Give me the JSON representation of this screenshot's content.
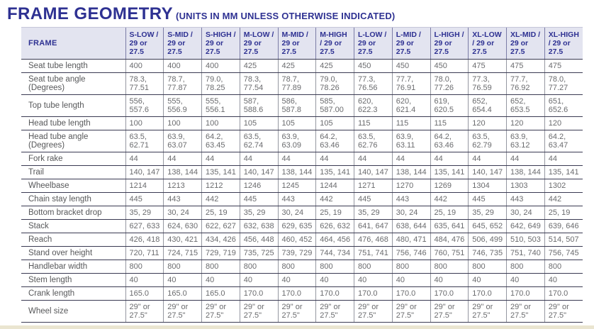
{
  "title": "FRAME GEOMETRY",
  "subtitle": "(UNITS IN MM UNLESS OTHERWISE INDICATED)",
  "colors": {
    "brand_navy": "#2e3192",
    "header_background": "#e3e4f0",
    "label_text": "#57585a",
    "cell_text": "#6a6b6e",
    "row_border": "#3a3a52",
    "column_border": "#9597a1"
  },
  "table": {
    "frame_header": "FRAME",
    "columns": [
      "S-LOW / 29 or 27.5",
      "S-MID / 29 or 27.5",
      "S-HIGH / 29 or 27.5",
      "M-LOW / 29 or 27.5",
      "M-MID / 29 or 27.5",
      "M-HIGH / 29 or 27.5",
      "L-LOW / 29 or 27.5",
      "L-MID / 29 or 27.5",
      "L-HIGH / 29 or 27.5",
      "XL-LOW / 29 or 27.5",
      "XL-MID / 29 or 27.5",
      "XL-HIGH / 29 or 27.5"
    ],
    "rows": [
      {
        "label": "Seat tube length",
        "values": [
          "400",
          "400",
          "400",
          "425",
          "425",
          "425",
          "450",
          "450",
          "450",
          "475",
          "475",
          "475"
        ]
      },
      {
        "label": "Seat tube angle (Degrees)",
        "values": [
          "78.3, 77.51",
          "78.7, 77.87",
          "79.0, 78.25",
          "78.3, 77.54",
          "78.7, 77.89",
          "79.0, 78.26",
          "77.3, 76.56",
          "77.7, 76.91",
          "78.0, 77.26",
          "77.3, 76.59",
          "77.7, 76.92",
          "78.0, 77.27"
        ]
      },
      {
        "label": "Top tube length",
        "values": [
          "556, 557.6",
          "555, 556.9",
          "555, 556.1",
          "587, 588.6",
          "586, 587.8",
          "585, 587.00",
          "620, 622.3",
          "620, 621.4",
          "619, 620.5",
          "652, 654.4",
          "652, 653.5",
          "651, 652.6"
        ]
      },
      {
        "label": "Head tube length",
        "values": [
          "100",
          "100",
          "100",
          "105",
          "105",
          "105",
          "115",
          "115",
          "115",
          "120",
          "120",
          "120"
        ]
      },
      {
        "label": "Head tube angle (Degrees)",
        "values": [
          "63.5, 62.71",
          "63.9, 63.07",
          "64.2, 63.45",
          "63.5, 62.74",
          "63.9, 63.09",
          "64.2, 63.46",
          "63.5, 62.76",
          "63.9, 63.11",
          "64.2, 63.46",
          "63.5, 62.79",
          "63.9, 63.12",
          "64.2, 63.47"
        ]
      },
      {
        "label": "Fork rake",
        "values": [
          "44",
          "44",
          "44",
          "44",
          "44",
          "44",
          "44",
          "44",
          "44",
          "44",
          "44",
          "44"
        ]
      },
      {
        "label": "Trail",
        "values": [
          "140, 147",
          "138, 144",
          "135, 141",
          "140, 147",
          "138, 144",
          "135, 141",
          "140, 147",
          "138, 144",
          "135, 141",
          "140, 147",
          "138, 144",
          "135, 141"
        ]
      },
      {
        "label": "Wheelbase",
        "values": [
          "1214",
          "1213",
          "1212",
          "1246",
          "1245",
          "1244",
          "1271",
          "1270",
          "1269",
          "1304",
          "1303",
          "1302"
        ]
      },
      {
        "label": "Chain stay length",
        "values": [
          "445",
          "443",
          "442",
          "445",
          "443",
          "442",
          "445",
          "443",
          "442",
          "445",
          "443",
          "442"
        ]
      },
      {
        "label": "Bottom bracket drop",
        "values": [
          "35, 29",
          "30, 24",
          "25, 19",
          "35, 29",
          "30, 24",
          "25, 19",
          "35, 29",
          "30, 24",
          "25, 19",
          "35, 29",
          "30, 24",
          "25, 19"
        ]
      },
      {
        "label": "Stack",
        "values": [
          "627, 633",
          "624, 630",
          "622, 627",
          "632, 638",
          "629, 635",
          "626, 632",
          "641, 647",
          "638, 644",
          "635, 641",
          "645, 652",
          "642, 649",
          "639, 646"
        ]
      },
      {
        "label": "Reach",
        "values": [
          "426, 418",
          "430, 421",
          "434, 426",
          "456, 448",
          "460, 452",
          "464, 456",
          "476, 468",
          "480, 471",
          "484, 476",
          "506, 499",
          "510, 503",
          "514, 507"
        ]
      },
      {
        "label": "Stand over height",
        "values": [
          "720, 711",
          "724, 715",
          "729, 719",
          "735, 725",
          "739, 729",
          "744, 734",
          "751, 741",
          "756, 746",
          "760, 751",
          "746, 735",
          "751, 740",
          "756, 745"
        ]
      },
      {
        "label": "Handlebar width",
        "values": [
          "800",
          "800",
          "800",
          "800",
          "800",
          "800",
          "800",
          "800",
          "800",
          "800",
          "800",
          "800"
        ]
      },
      {
        "label": "Stem length",
        "values": [
          "40",
          "40",
          "40",
          "40",
          "40",
          "40",
          "40",
          "40",
          "40",
          "40",
          "40",
          "40"
        ]
      },
      {
        "label": "Crank length",
        "values": [
          "165.0",
          "165.0",
          "165.0",
          "170.0",
          "170.0",
          "170.0",
          "170.0",
          "170.0",
          "170.0",
          "170.0",
          "170.0",
          "170.0"
        ]
      },
      {
        "label": "Wheel size",
        "values": [
          "29\" or 27.5\"",
          "29\" or 27.5\"",
          "29\" or 27.5\"",
          "29\" or 27.5\"",
          "29\" or 27.5\"",
          "29\" or 27.5\"",
          "29\" or 27.5\"",
          "29\" or 27.5\"",
          "29\" or 27.5\"",
          "29\" or 27.5\"",
          "29\" or 27.5\"",
          "29\" or 27.5\""
        ]
      }
    ]
  }
}
